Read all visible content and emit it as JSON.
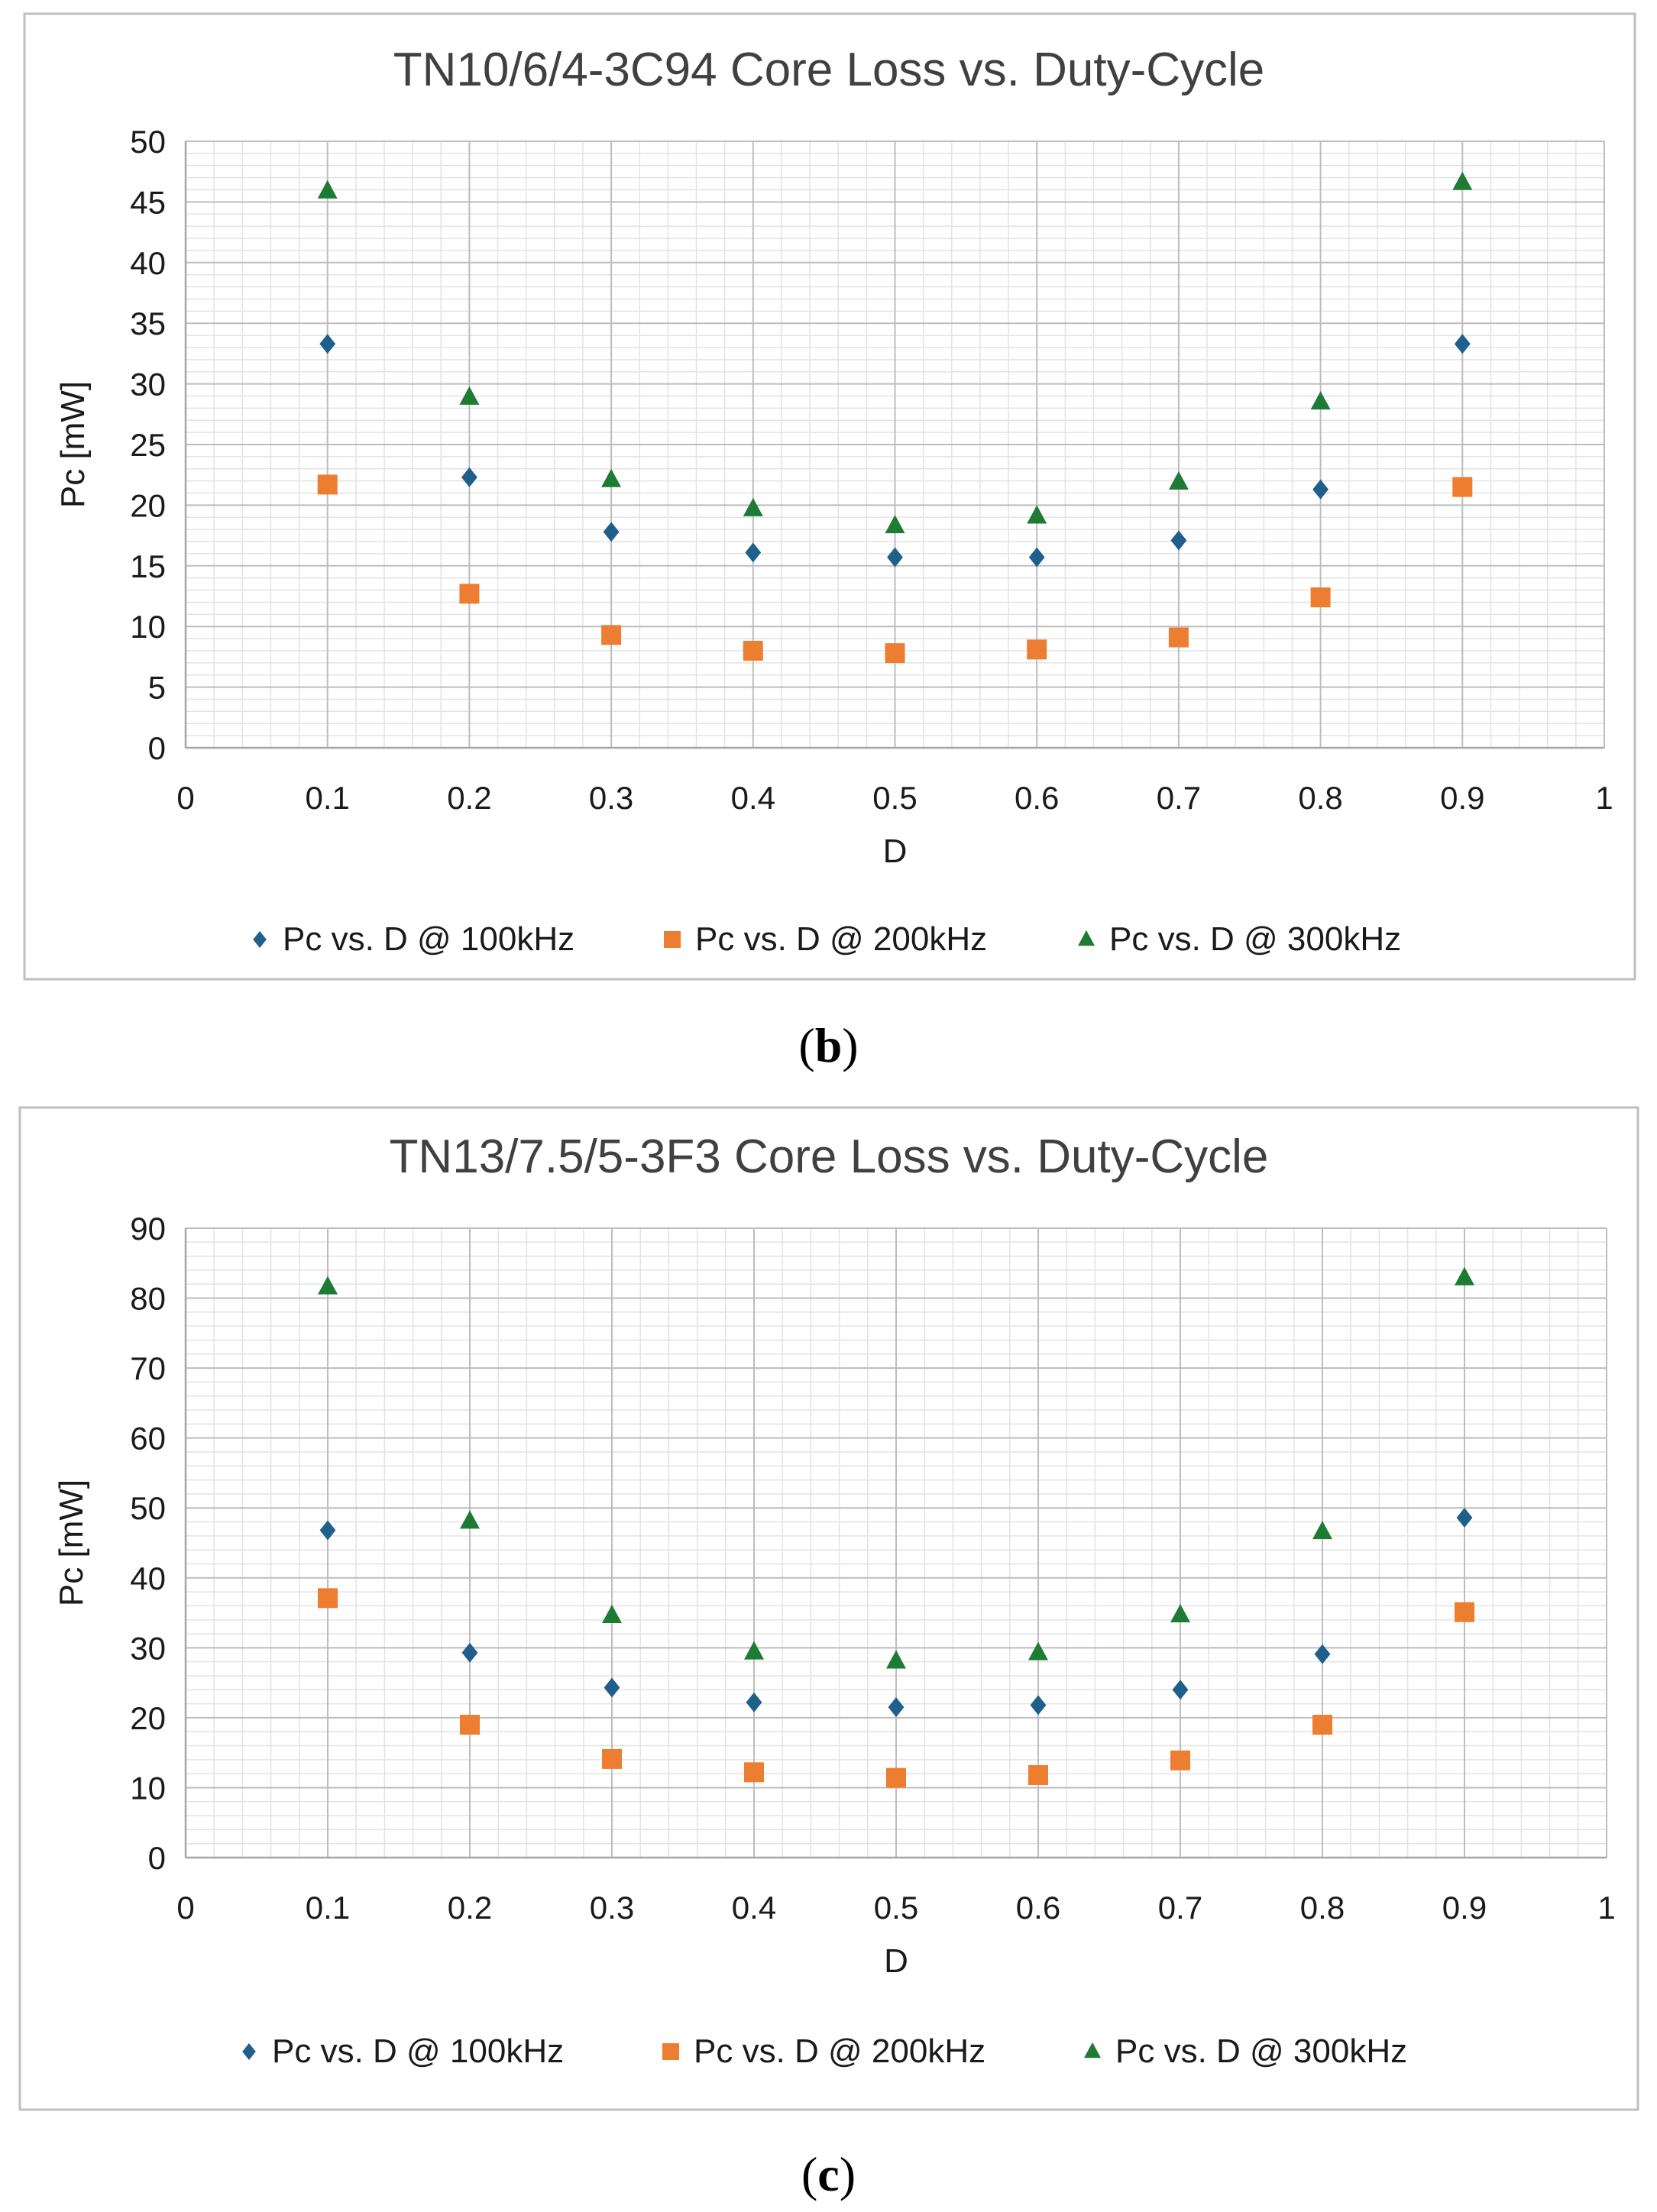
{
  "chart_data": [
    {
      "type": "scatter",
      "title": "TN10/6/4-3C94 Core Loss vs. Duty-Cycle",
      "xlabel": "D",
      "ylabel": "Pc [mW]",
      "xlim": [
        0,
        1
      ],
      "ylim": [
        0,
        50
      ],
      "x_ticks": [
        "0",
        "0.1",
        "0.2",
        "0.3",
        "0.4",
        "0.5",
        "0.6",
        "0.7",
        "0.8",
        "0.9",
        "1"
      ],
      "y_ticks": [
        "0",
        "5",
        "10",
        "15",
        "20",
        "25",
        "30",
        "35",
        "40",
        "45",
        "50"
      ],
      "grid": true,
      "legend_position": "bottom",
      "series": [
        {
          "name": "Pc vs. D @ 100kHz",
          "marker": "diamond",
          "color": "#1f5f8b",
          "x": [
            0.1,
            0.2,
            0.3,
            0.4,
            0.5,
            0.6,
            0.7,
            0.8,
            0.9
          ],
          "y": [
            33.3,
            22.3,
            17.8,
            16.1,
            15.7,
            15.7,
            17.1,
            21.3,
            33.3
          ]
        },
        {
          "name": "Pc vs. D @ 200kHz",
          "marker": "square",
          "color": "#ed7d31",
          "x": [
            0.1,
            0.2,
            0.3,
            0.4,
            0.5,
            0.6,
            0.7,
            0.8,
            0.9
          ],
          "y": [
            21.7,
            12.7,
            9.3,
            8.0,
            7.8,
            8.1,
            9.1,
            12.4,
            21.5
          ]
        },
        {
          "name": "Pc vs. D @ 300kHz",
          "marker": "triangle",
          "color": "#1e7b34",
          "x": [
            0.1,
            0.2,
            0.3,
            0.4,
            0.5,
            0.6,
            0.7,
            0.8,
            0.9
          ],
          "y": [
            45.9,
            28.9,
            22.1,
            19.7,
            18.3,
            19.1,
            21.9,
            28.5,
            46.6
          ]
        }
      ]
    },
    {
      "type": "scatter",
      "title": "TN13/7.5/5-3F3 Core Loss vs. Duty-Cycle",
      "xlabel": "D",
      "ylabel": "Pc [mW]",
      "xlim": [
        0,
        1
      ],
      "ylim": [
        0,
        90
      ],
      "x_ticks": [
        "0",
        "0.1",
        "0.2",
        "0.3",
        "0.4",
        "0.5",
        "0.6",
        "0.7",
        "0.8",
        "0.9",
        "1"
      ],
      "y_ticks": [
        "0",
        "10",
        "20",
        "30",
        "40",
        "50",
        "60",
        "70",
        "80",
        "90"
      ],
      "grid": true,
      "legend_position": "bottom",
      "series": [
        {
          "name": "Pc vs. D @ 100kHz",
          "marker": "diamond",
          "color": "#1f5f8b",
          "x": [
            0.1,
            0.2,
            0.3,
            0.4,
            0.5,
            0.6,
            0.7,
            0.8,
            0.9
          ],
          "y": [
            46.8,
            29.3,
            24.3,
            22.2,
            21.5,
            21.8,
            24.0,
            29.1,
            48.6
          ]
        },
        {
          "name": "Pc vs. D @ 200kHz",
          "marker": "square",
          "color": "#ed7d31",
          "x": [
            0.1,
            0.2,
            0.3,
            0.4,
            0.5,
            0.6,
            0.7,
            0.8,
            0.9
          ],
          "y": [
            37.1,
            19.0,
            14.1,
            12.2,
            11.4,
            11.8,
            13.9,
            19.0,
            35.1
          ]
        },
        {
          "name": "Pc vs. D @ 300kHz",
          "marker": "triangle",
          "color": "#1e7b34",
          "x": [
            0.1,
            0.2,
            0.3,
            0.4,
            0.5,
            0.6,
            0.7,
            0.8,
            0.9
          ],
          "y": [
            81.6,
            48.1,
            34.6,
            29.4,
            28.1,
            29.3,
            34.7,
            46.6,
            82.9
          ]
        }
      ]
    }
  ],
  "panel_labels": [
    {
      "open": "(",
      "letter": "b",
      "close": ")"
    },
    {
      "open": "(",
      "letter": "c",
      "close": ")"
    }
  ]
}
